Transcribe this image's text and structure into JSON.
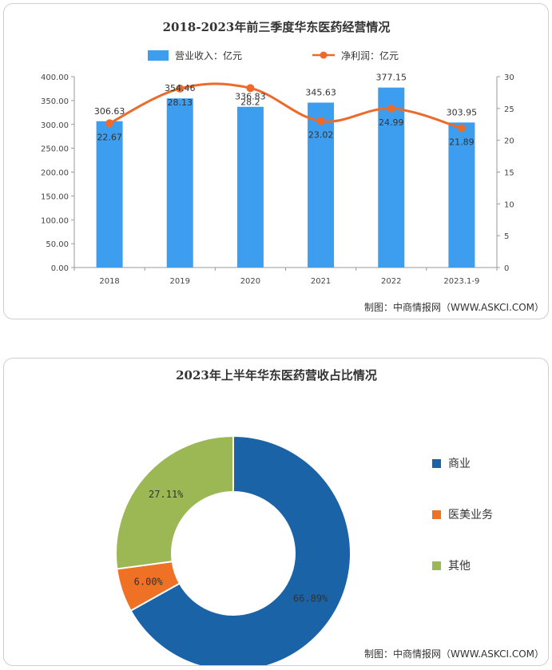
{
  "chart_data": [
    {
      "type": "bar",
      "title": "2018-2023年前三季度华东医药经营情况",
      "categories": [
        "2018",
        "2019",
        "2020",
        "2021",
        "2022",
        "2023.1-9"
      ],
      "series": [
        {
          "name": "营业收入：亿元",
          "kind": "bar",
          "axis": "left",
          "color": "#3d9eef",
          "values": [
            306.63,
            354.46,
            336.83,
            345.63,
            377.15,
            303.95
          ],
          "labels": [
            "306.63",
            "354.46",
            "336.83",
            "345.63",
            "377.15",
            "303.95"
          ]
        },
        {
          "name": "净利润：亿元",
          "kind": "line",
          "axis": "right",
          "color": "#ec6a2a",
          "values": [
            22.67,
            28.13,
            28.2,
            23.02,
            24.99,
            21.89
          ],
          "labels": [
            "22.67",
            "28.13",
            "28.2",
            "23.02",
            "24.99",
            "21.89"
          ]
        }
      ],
      "yleft": {
        "min": 0,
        "max": 400,
        "ticks": [
          "0.00",
          "50.00",
          "100.00",
          "150.00",
          "200.00",
          "250.00",
          "300.00",
          "350.00",
          "400.00"
        ]
      },
      "yright": {
        "min": 0,
        "max": 30,
        "ticks": [
          "0",
          "5",
          "10",
          "15",
          "20",
          "25",
          "30"
        ]
      },
      "source": "制图：中商情报网（WWW.ASKCI.COM）"
    },
    {
      "type": "pie",
      "title": "2023年上半年华东医药营收占比情况",
      "donut": true,
      "slices": [
        {
          "name": "商业",
          "value": 66.89,
          "label": "66.89%",
          "color": "#1a63a6"
        },
        {
          "name": "医美业务",
          "value": 6.0,
          "label": "6.00%",
          "color": "#ee7125"
        },
        {
          "name": "其他",
          "value": 27.11,
          "label": "27.11%",
          "color": "#9bb855"
        }
      ],
      "legend_position": "right",
      "source": "制图：中商情报网（WWW.ASKCI.COM）"
    }
  ]
}
